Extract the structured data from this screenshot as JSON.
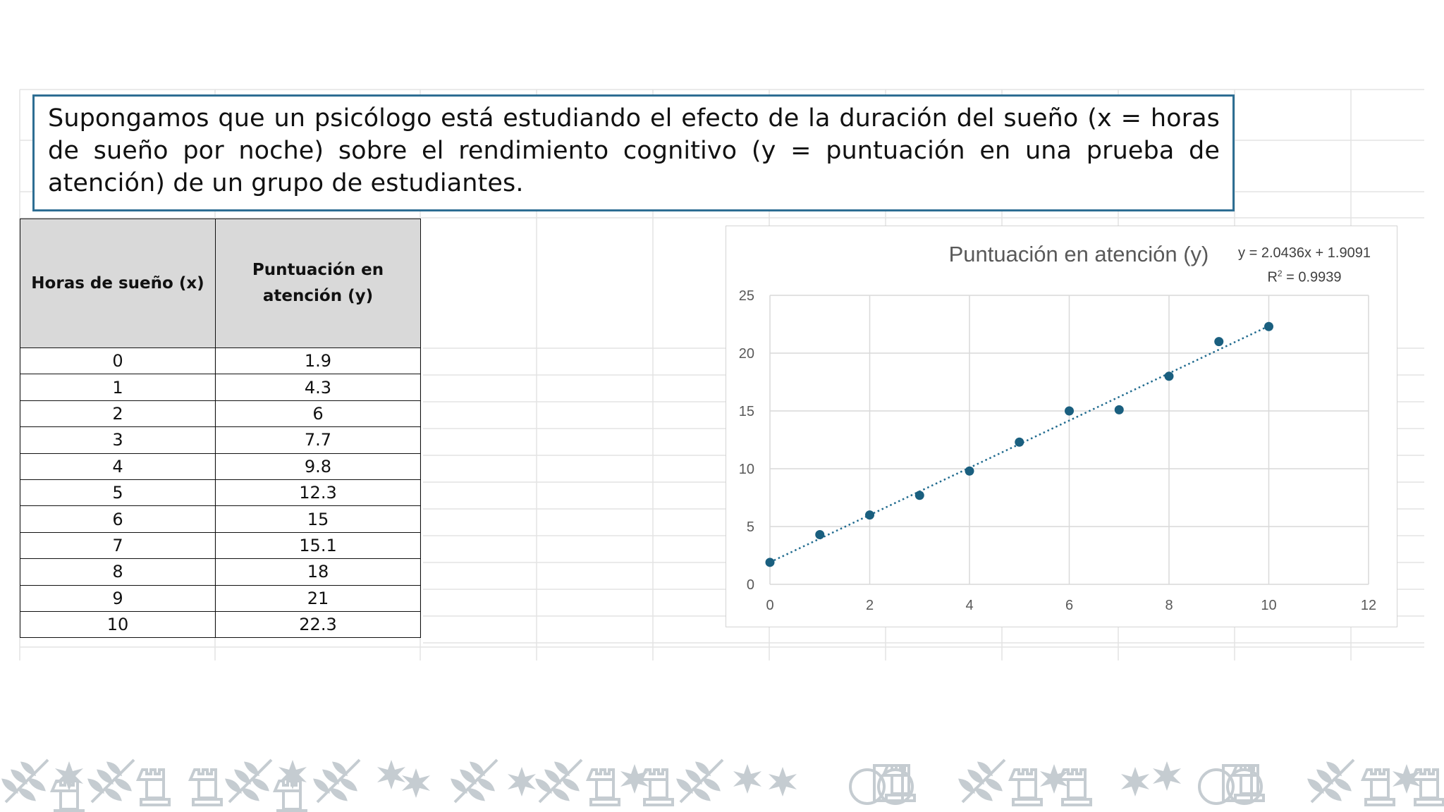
{
  "problem_text": "Supongamos que un psicólogo está estudiando el efecto de la duración del sueño (x = horas de sueño por noche) sobre el rendimiento cognitivo (y = puntuación en una prueba de atención) de un grupo de estudiantes.",
  "table": {
    "headers": [
      "Horas de sueño (x)",
      "Puntuación en atención (y)"
    ],
    "rows": [
      [
        "0",
        "1.9"
      ],
      [
        "1",
        "4.3"
      ],
      [
        "2",
        "6"
      ],
      [
        "3",
        "7.7"
      ],
      [
        "4",
        "9.8"
      ],
      [
        "5",
        "12.3"
      ],
      [
        "6",
        "15"
      ],
      [
        "7",
        "15.1"
      ],
      [
        "8",
        "18"
      ],
      [
        "9",
        "21"
      ],
      [
        "10",
        "22.3"
      ]
    ]
  },
  "chart_data": {
    "type": "scatter",
    "title": "Puntuación en atención (y)",
    "x": [
      0,
      1,
      2,
      3,
      4,
      5,
      6,
      7,
      8,
      9,
      10
    ],
    "y": [
      1.9,
      4.3,
      6,
      7.7,
      9.8,
      12.3,
      15,
      15.1,
      18,
      21,
      22.3
    ],
    "xlim": [
      0,
      12
    ],
    "ylim": [
      0,
      25
    ],
    "x_ticks": [
      0,
      2,
      4,
      6,
      8,
      10,
      12
    ],
    "y_ticks": [
      0,
      5,
      10,
      15,
      20,
      25
    ],
    "grid": true,
    "trendline": {
      "type": "linear",
      "slope": 2.0436,
      "intercept": 1.9091,
      "equation_label": "y = 2.0436x + 1.9091",
      "r2_prefix": "R",
      "r2_suffix": " = 0.9939",
      "r2_exponent": "2",
      "style": "dotted",
      "range": [
        0,
        10
      ]
    },
    "point_color": "#1a5f7f",
    "trendline_color": "#1f6a8e",
    "legend": "none"
  },
  "colors": {
    "textbox_border": "#2e6e93",
    "header_fill": "#d9d9d9",
    "ornament": "#c5ccd1"
  }
}
